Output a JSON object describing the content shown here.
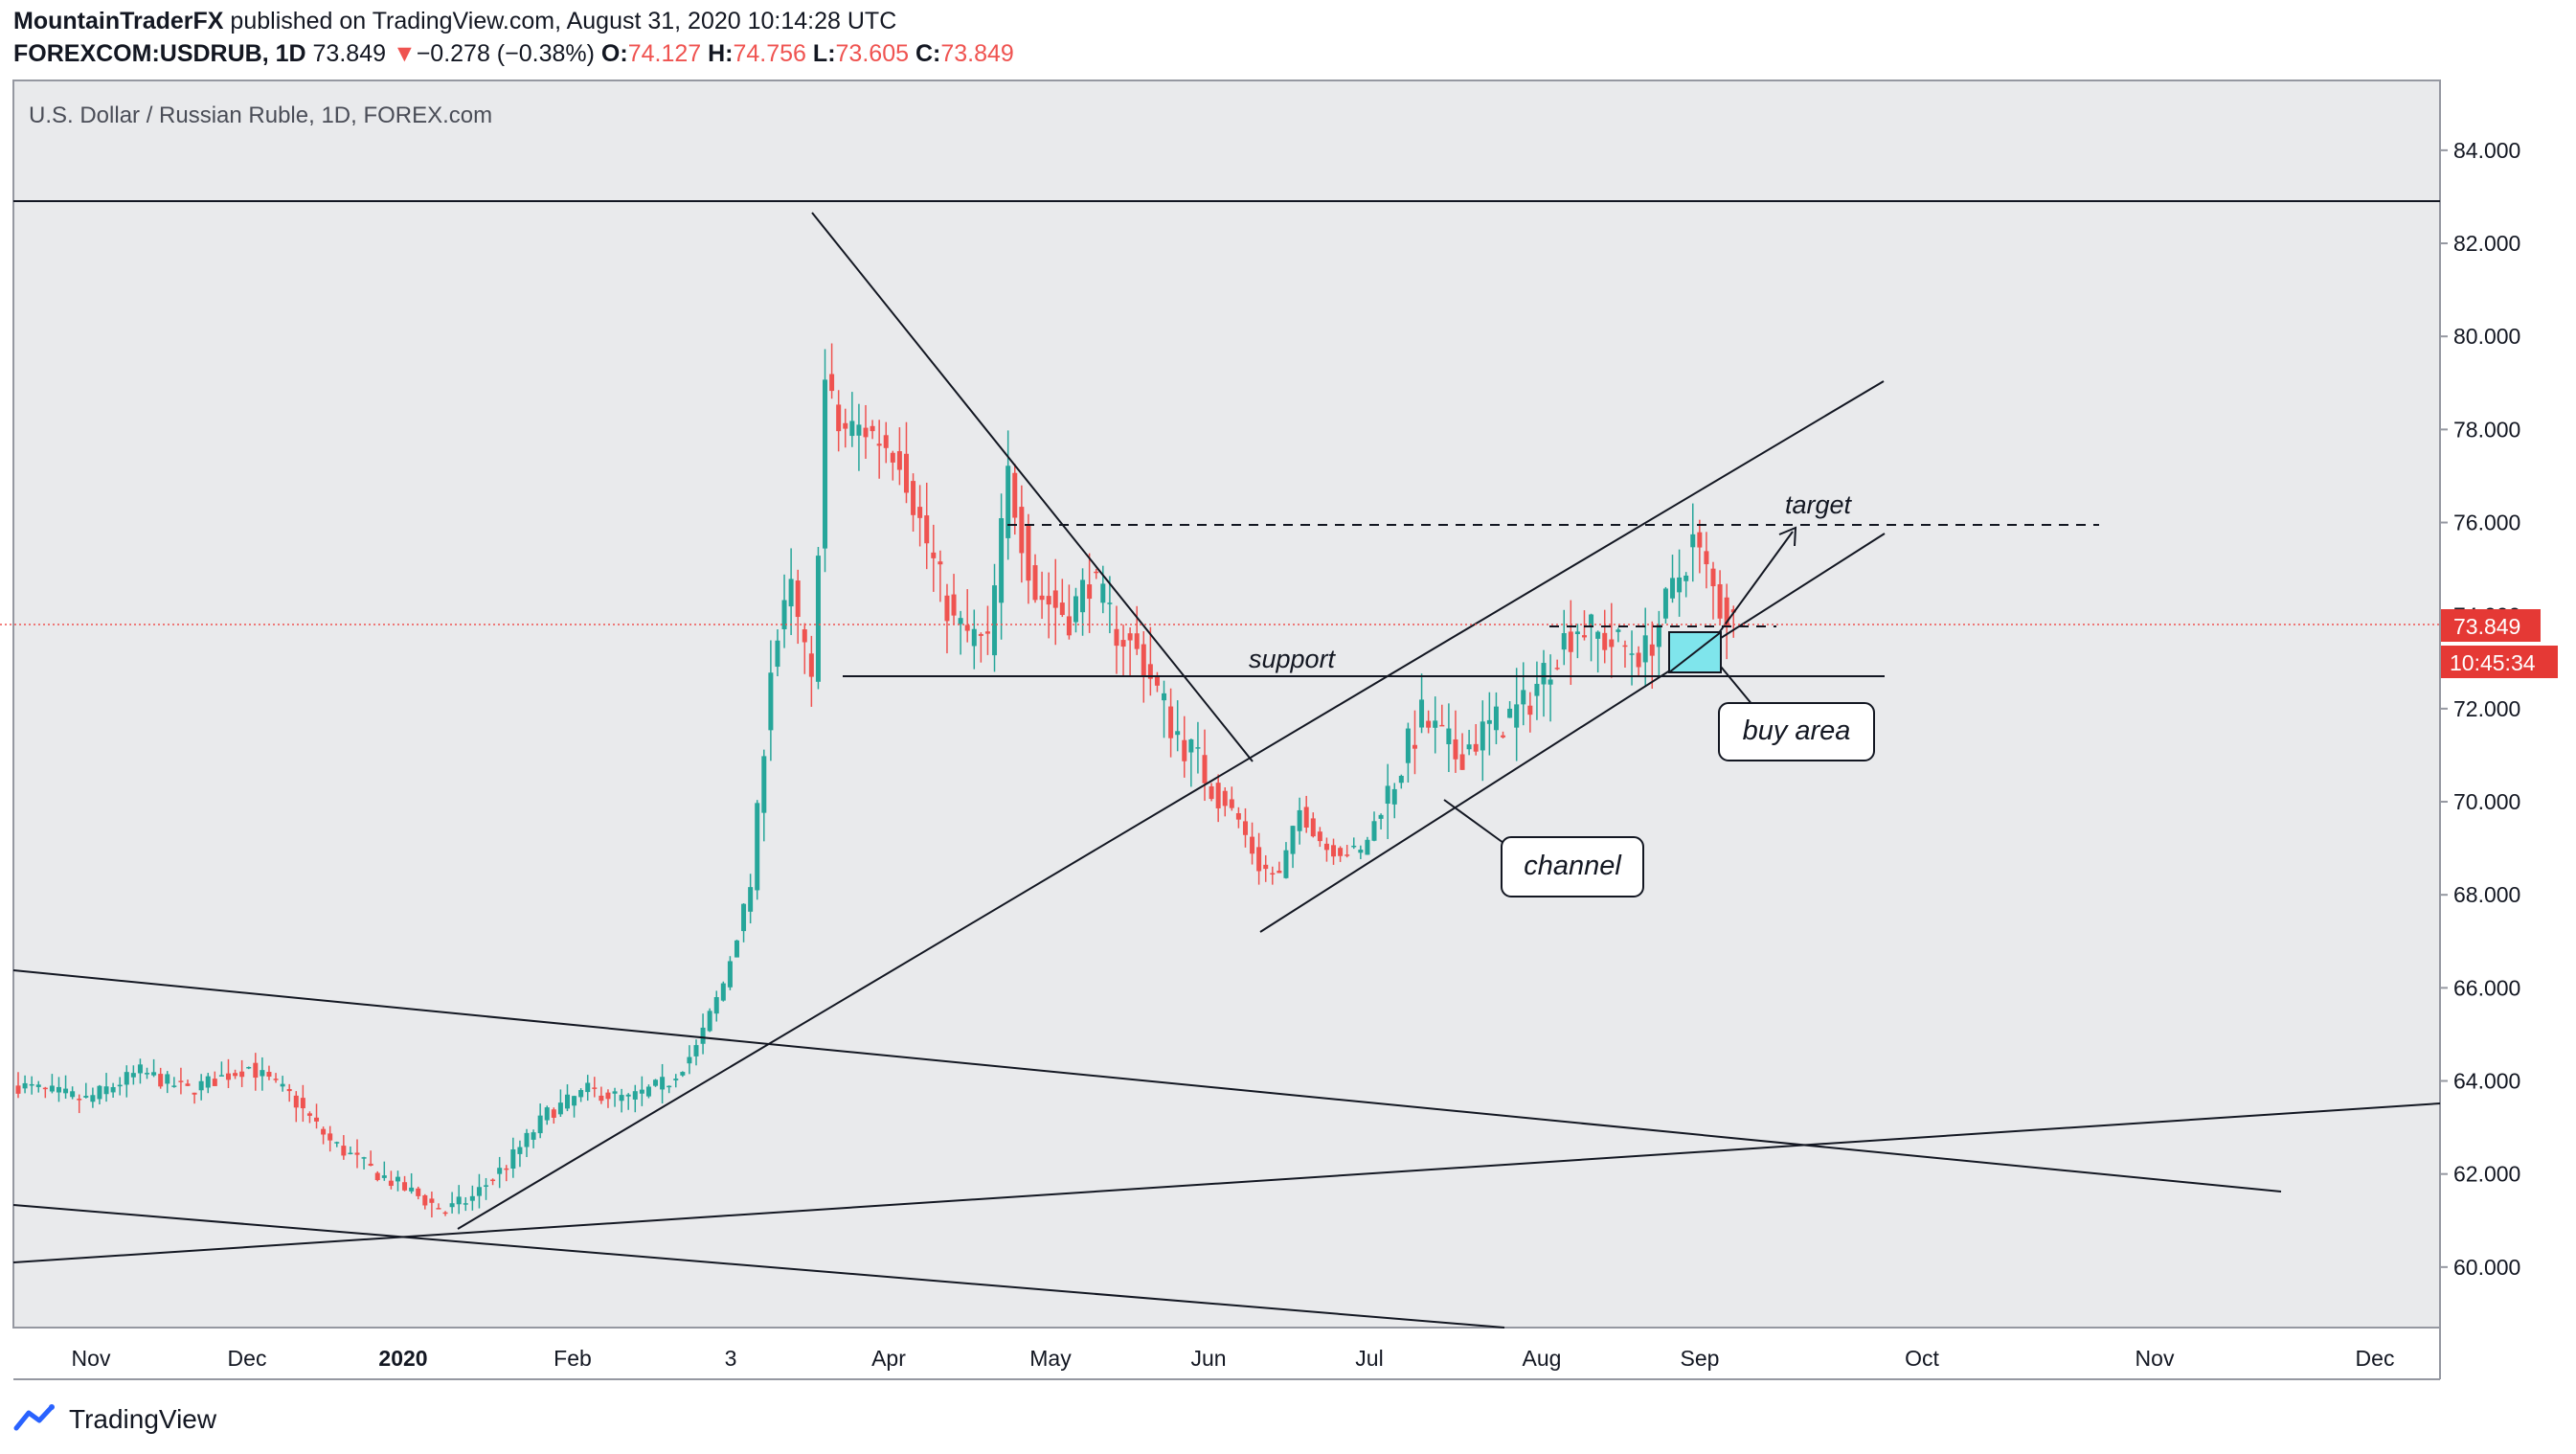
{
  "header": {
    "author": "MountainTraderFX",
    "published": "published on TradingView.com, August 31, 2020 10:14:28 UTC",
    "symbol": "FOREXCOM:USDRUB, 1D",
    "last": "73.849",
    "change_arrow": "▼",
    "change": "−0.278 (−0.38%)",
    "o_label": "O:",
    "o": "74.127",
    "h_label": "H:",
    "h": "74.756",
    "l_label": "L:",
    "l": "73.605",
    "c_label": "C:",
    "c": "73.849"
  },
  "footer": {
    "brand": "TradingView",
    "logo_icon": "tradingview-logo-icon"
  },
  "colors": {
    "up": "#26a69a",
    "down": "#ef5350",
    "background": "#e9eaec",
    "line": "#131722",
    "buy_area": "#7fe5ec",
    "price_tag": "#e53935"
  },
  "chart_data": {
    "type": "candlestick",
    "title": "U.S. Dollar / Russian Ruble, 1D, FOREX.com",
    "ylim": [
      58.7,
      85.5
    ],
    "y_ticks": [
      "84.000",
      "82.000",
      "80.000",
      "78.000",
      "76.000",
      "74.000",
      "72.000",
      "70.000",
      "68.000",
      "66.000",
      "64.000",
      "62.000",
      "60.000"
    ],
    "x_ticks": [
      "Nov",
      "Dec",
      "2020",
      "Feb",
      "3",
      "Apr",
      "May",
      "Jun",
      "Jul",
      "Aug",
      "Sep",
      "Oct",
      "Nov",
      "Dec"
    ],
    "last_price": "73.849",
    "countdown": "10:45:34",
    "price_anchors": [
      [
        0,
        63.9
      ],
      [
        10,
        63.6
      ],
      [
        18,
        64.2
      ],
      [
        25,
        63.8
      ],
      [
        34,
        64.3
      ],
      [
        40,
        63.7
      ],
      [
        46,
        62.7
      ],
      [
        52,
        62.1
      ],
      [
        58,
        61.6
      ],
      [
        63,
        61.2
      ],
      [
        67,
        61.5
      ],
      [
        72,
        62.2
      ],
      [
        78,
        63.3
      ],
      [
        84,
        63.8
      ],
      [
        90,
        63.6
      ],
      [
        96,
        64.0
      ],
      [
        100,
        64.7
      ],
      [
        104,
        66.1
      ],
      [
        108,
        68.2
      ],
      [
        111,
        73.0
      ],
      [
        114,
        74.5
      ],
      [
        117,
        72.4
      ],
      [
        119,
        79.0
      ],
      [
        121,
        78.0
      ],
      [
        125,
        78.0
      ],
      [
        130,
        77.5
      ],
      [
        133,
        76.0
      ],
      [
        138,
        73.8
      ],
      [
        143,
        73.3
      ],
      [
        146,
        77.0
      ],
      [
        150,
        74.5
      ],
      [
        155,
        74.0
      ],
      [
        158,
        74.8
      ],
      [
        162,
        73.7
      ],
      [
        166,
        73.0
      ],
      [
        170,
        71.7
      ],
      [
        175,
        70.6
      ],
      [
        180,
        69.6
      ],
      [
        183,
        68.6
      ],
      [
        186,
        68.4
      ],
      [
        189,
        69.8
      ],
      [
        193,
        69.0
      ],
      [
        198,
        68.9
      ],
      [
        203,
        70.5
      ],
      [
        207,
        71.8
      ],
      [
        212,
        71.0
      ],
      [
        217,
        71.6
      ],
      [
        222,
        72.0
      ],
      [
        227,
        73.3
      ],
      [
        230,
        73.8
      ],
      [
        235,
        73.4
      ],
      [
        240,
        73.2
      ],
      [
        244,
        74.5
      ],
      [
        247,
        75.6
      ],
      [
        251,
        74.2
      ],
      [
        253,
        73.85
      ]
    ],
    "annotations": [
      {
        "text": "support"
      },
      {
        "text": "target"
      },
      {
        "text": "buy area"
      },
      {
        "text": "channel"
      }
    ]
  }
}
